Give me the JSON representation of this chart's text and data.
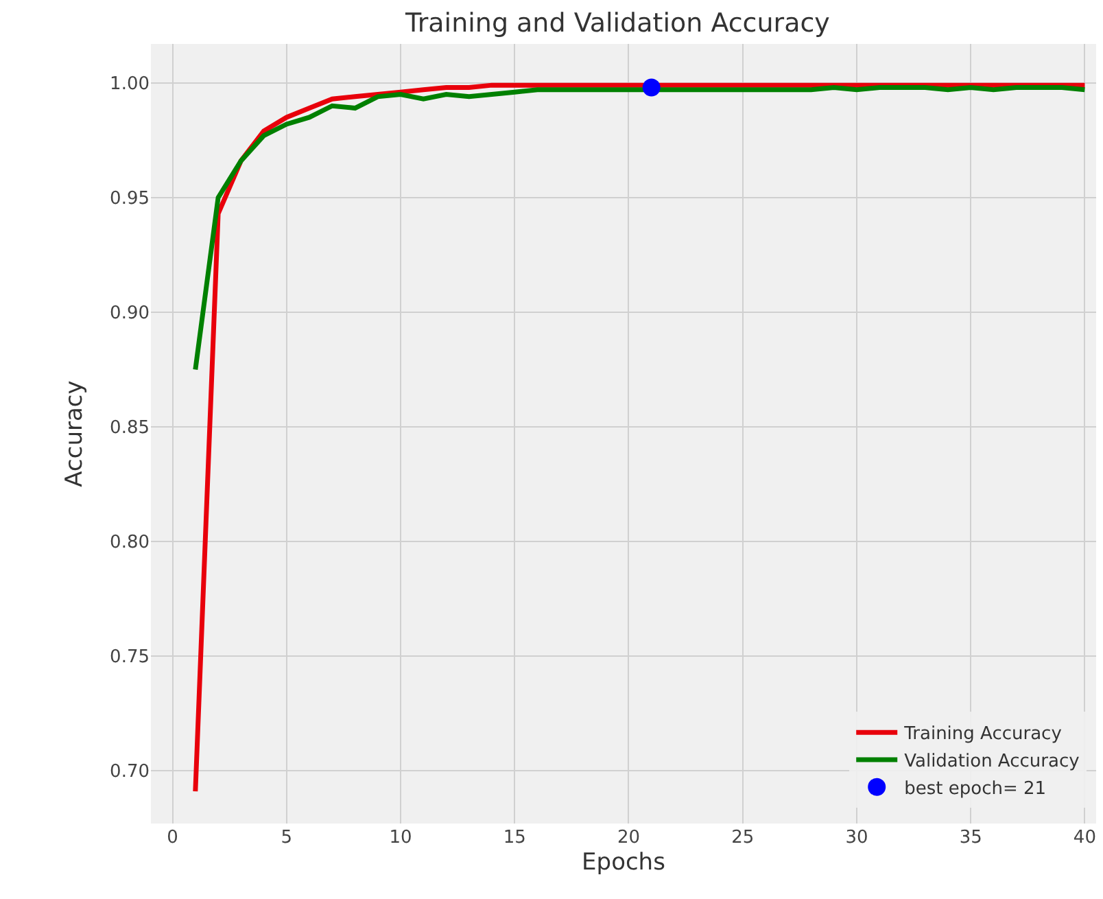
{
  "chart_data": {
    "type": "line",
    "title": "Training and Validation Accuracy",
    "xlabel": "Epochs",
    "ylabel": "Accuracy",
    "x": [
      1,
      2,
      3,
      4,
      5,
      6,
      7,
      8,
      9,
      10,
      11,
      12,
      13,
      14,
      15,
      16,
      17,
      18,
      19,
      20,
      21,
      22,
      23,
      24,
      25,
      26,
      27,
      28,
      29,
      30,
      31,
      32,
      33,
      34,
      35,
      36,
      37,
      38,
      39,
      40
    ],
    "series": [
      {
        "name": "Training Accuracy",
        "color": "#e8000b",
        "values": [
          0.691,
          0.943,
          0.966,
          0.979,
          0.985,
          0.989,
          0.993,
          0.994,
          0.995,
          0.996,
          0.997,
          0.998,
          0.998,
          0.999,
          0.999,
          0.999,
          0.999,
          0.999,
          0.999,
          0.999,
          0.999,
          0.999,
          0.999,
          0.999,
          0.999,
          0.999,
          0.999,
          0.999,
          0.999,
          0.999,
          0.999,
          0.999,
          0.999,
          0.999,
          0.999,
          0.999,
          0.999,
          0.999,
          0.999,
          0.999
        ]
      },
      {
        "name": "Validation Accuracy",
        "color": "#008000",
        "values": [
          0.875,
          0.95,
          0.966,
          0.977,
          0.982,
          0.985,
          0.99,
          0.989,
          0.994,
          0.995,
          0.993,
          0.995,
          0.994,
          0.995,
          0.996,
          0.997,
          0.997,
          0.997,
          0.997,
          0.997,
          0.997,
          0.997,
          0.997,
          0.997,
          0.997,
          0.997,
          0.997,
          0.997,
          0.998,
          0.997,
          0.998,
          0.998,
          0.998,
          0.997,
          0.998,
          0.997,
          0.998,
          0.998,
          0.998,
          0.997
        ]
      },
      {
        "name": "best epoch= 21",
        "type": "scatter",
        "color": "#0000ff",
        "marker": "circle",
        "x": [
          21
        ],
        "values": [
          0.998
        ]
      }
    ],
    "xlim": [
      -0.95,
      40.5
    ],
    "ylim": [
      0.677,
      1.017
    ],
    "xticks": [
      0,
      5,
      10,
      15,
      20,
      25,
      30,
      35,
      40
    ],
    "yticks": [
      {
        "value": 0.7,
        "label": "0.70"
      },
      0.75,
      {
        "value": 0.8,
        "label": "0.80"
      },
      0.85,
      {
        "value": 0.9,
        "label": "0.90"
      },
      0.95,
      {
        "value": 1,
        "label": "1.00"
      }
    ],
    "grid": true,
    "legend": "bottom right",
    "marker": "none",
    "line_style": "solid"
  }
}
